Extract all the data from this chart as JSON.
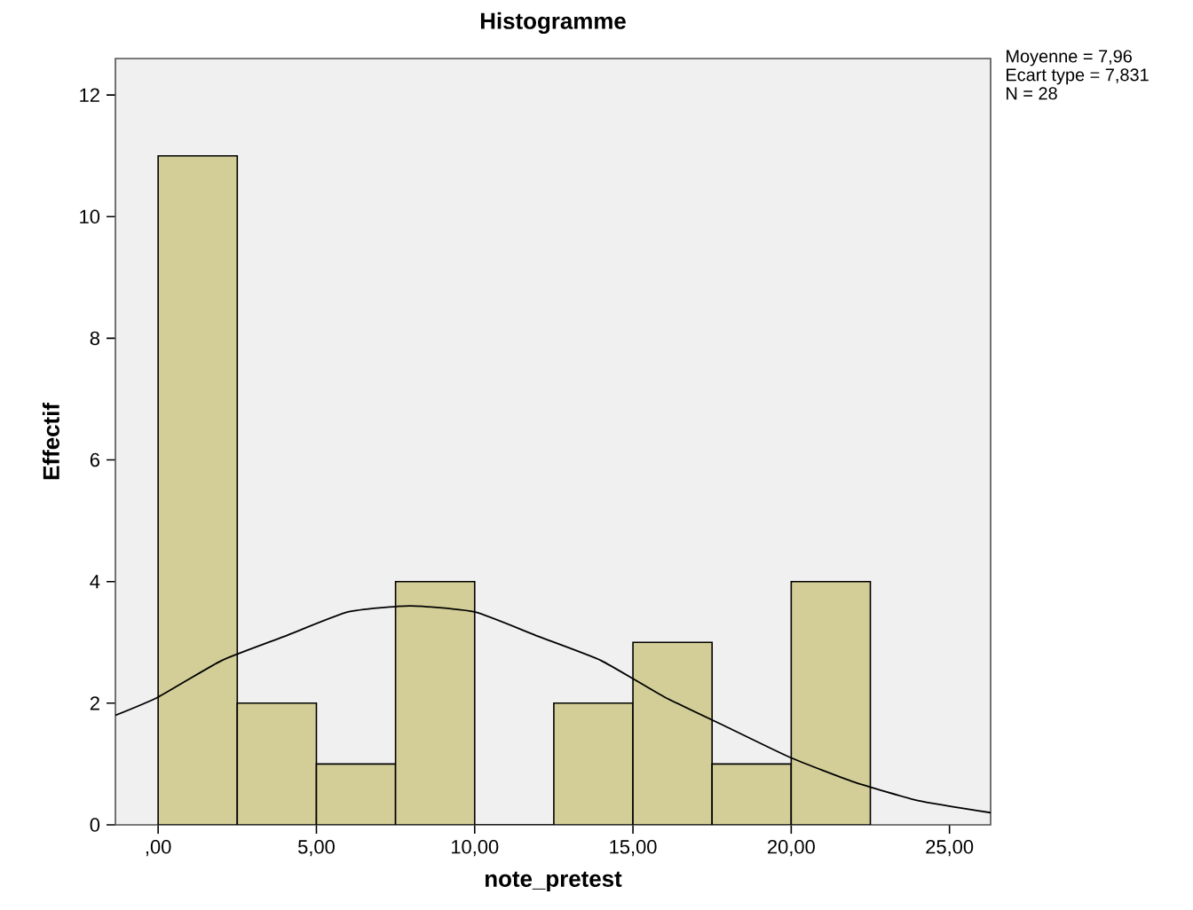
{
  "chart_data": {
    "type": "histogram",
    "title": "Histogramme",
    "xlabel": "note_pretest",
    "ylabel": "Effectif",
    "bins": [
      0,
      2.5,
      5,
      7.5,
      10,
      12.5,
      15,
      17.5,
      20,
      22.5
    ],
    "values": [
      11,
      2,
      1,
      4,
      0,
      2,
      3,
      1,
      4
    ],
    "color": "#d3ce97",
    "series": [
      {
        "type": "line",
        "color": "#000000",
        "x": [
          -1.35,
          0,
          2,
          4,
          6,
          7.96,
          10,
          12,
          14,
          16,
          18,
          20,
          22,
          24,
          26.3
        ],
        "values": [
          1.8,
          2.1,
          2.7,
          3.1,
          3.5,
          3.6,
          3.5,
          3.1,
          2.7,
          2.1,
          1.6,
          1.1,
          0.7,
          0.4,
          0.2
        ]
      }
    ],
    "xlim": [
      -1.35,
      26.3
    ],
    "ylim": [
      0,
      12.6
    ],
    "xticks": [
      {
        "value": 0,
        "label": ",00"
      },
      {
        "value": 5,
        "label": "5,00"
      },
      {
        "value": 10,
        "label": "10,00"
      },
      {
        "value": 15,
        "label": "15,00"
      },
      {
        "value": 20,
        "label": "20,00"
      },
      {
        "value": 25,
        "label": "25,00"
      }
    ],
    "yticks": [
      0,
      2,
      4,
      6,
      8,
      10,
      12
    ],
    "annotations": [
      "Moyenne = 7,96",
      "Ecart type = 7,831",
      "N = 28"
    ]
  }
}
